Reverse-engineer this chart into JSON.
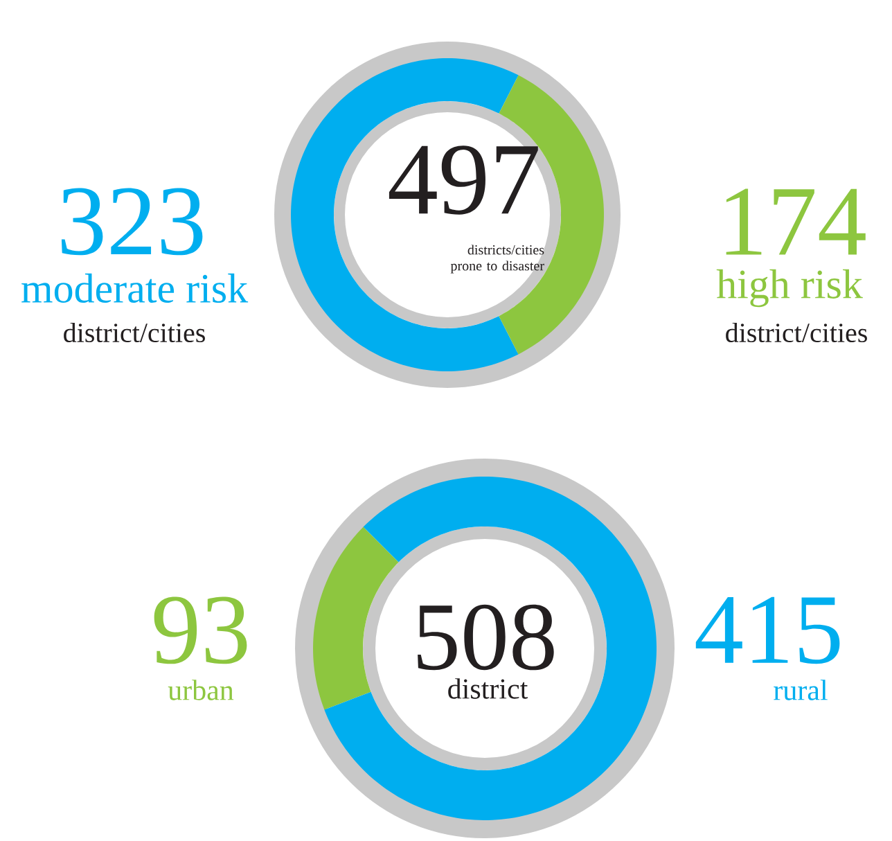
{
  "chart_data": [
    {
      "type": "donut",
      "categories": [
        "moderate risk",
        "high risk"
      ],
      "values": [
        323,
        174
      ],
      "colors": [
        "#00aeef",
        "#8dc63f"
      ],
      "data_labels": true,
      "annotations": [
        "district/cities",
        "district/cities",
        "497",
        "districts/cities prone to disaster"
      ]
    },
    {
      "type": "donut",
      "categories": [
        "urban",
        "rural"
      ],
      "values": [
        93,
        415
      ],
      "colors": [
        "#8dc63f",
        "#00aeef"
      ],
      "data_labels": true,
      "annotations": [
        "508",
        "district"
      ]
    }
  ]
}
